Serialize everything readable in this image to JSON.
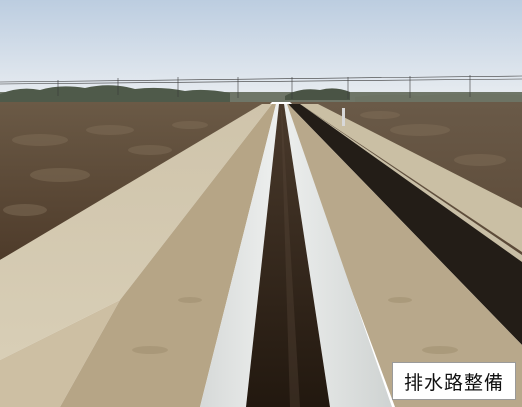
{
  "caption": {
    "text": "排水路整備"
  },
  "colors": {
    "sky_top": "#bfcfe0",
    "sky_bottom": "#e8edf2",
    "field_left": "#5e4833",
    "field_right": "#5a4632",
    "embankment": "#d2c7ae",
    "path": "#b9a98c",
    "channel_wall": "#e2e5e4",
    "water": "#2e2218",
    "dark_ditch": "#231d17"
  }
}
